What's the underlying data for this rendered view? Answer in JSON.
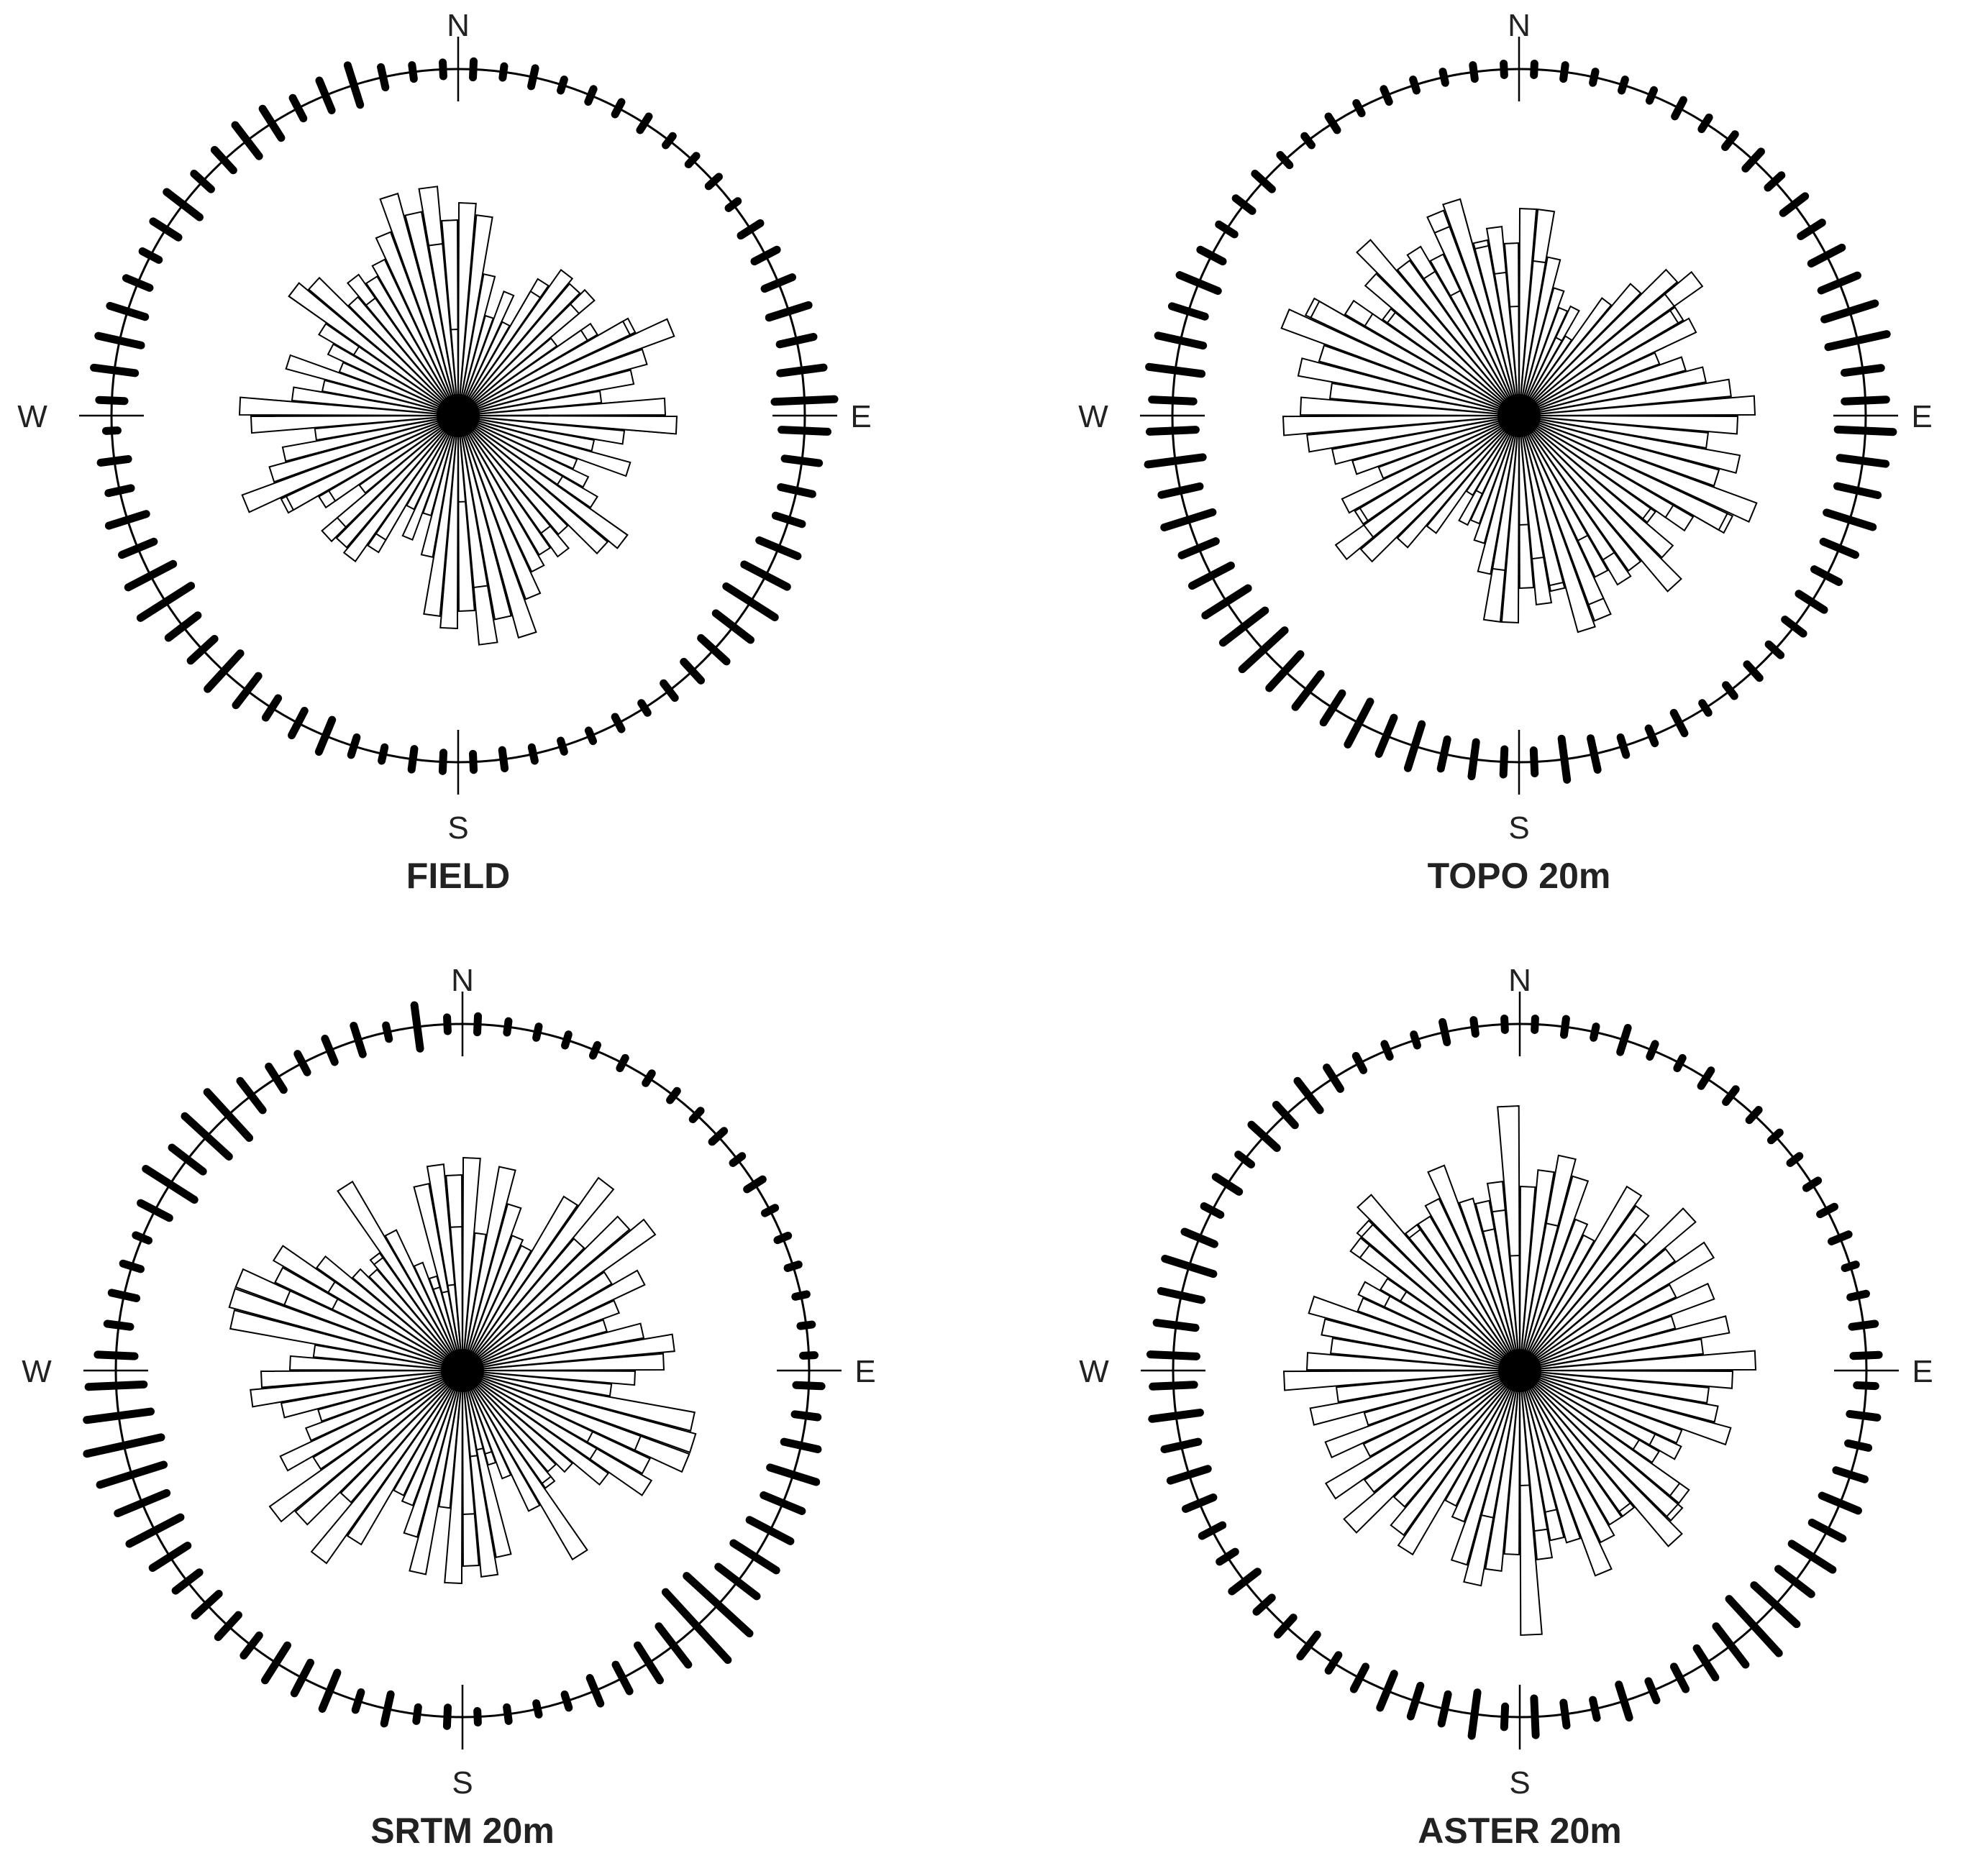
{
  "figure": {
    "direction_labels": {
      "N": "N",
      "E": "E",
      "S": "S",
      "W": "W"
    }
  },
  "chart_data": [
    {
      "type": "rose",
      "title": "FIELD",
      "bin_width_deg": 5,
      "petal_values": [
        0.5,
        0.12,
        0.18,
        0.34,
        0.22,
        0.3,
        0.55,
        0.38,
        0.48,
        0.62,
        0.4,
        0.56,
        0.68,
        0.46,
        0.5,
        0.36,
        0.44,
        0.58,
        0.72,
        0.5,
        0.35,
        0.44,
        0.3,
        0.36,
        0.56,
        0.72,
        0.6,
        0.5,
        0.6,
        0.5,
        0.54,
        0.56,
        0.66,
        0.7,
        0.8,
        0.68,
        0.74,
        0.7,
        0.5,
        0.36,
        0.46,
        0.36,
        0.5,
        0.62,
        0.6,
        0.55,
        0.42,
        0.52,
        0.66,
        0.8,
        0.68,
        0.62,
        0.5,
        0.72,
        0.76,
        0.58,
        0.48,
        0.62,
        0.44,
        0.5,
        0.42,
        0.72,
        0.68,
        0.54,
        0.5,
        0.56,
        0.6,
        0.68,
        0.8,
        0.72,
        0.6,
        0.3
      ],
      "rim_ticks": [
        0.14,
        0.1,
        0.16,
        0.1,
        0.12,
        0.12,
        0.14,
        0.1,
        0.1,
        0.12,
        0.1,
        0.2,
        0.22,
        0.26,
        0.36,
        0.3,
        0.38,
        0.52,
        0.4,
        0.3,
        0.28,
        0.24,
        0.36,
        0.42,
        0.5,
        0.38,
        0.3,
        0.22,
        0.16,
        0.1,
        0.12,
        0.1,
        0.1,
        0.12,
        0.16,
        0.14,
        0.16,
        0.18,
        0.12,
        0.16,
        0.3,
        0.24,
        0.2,
        0.32,
        0.42,
        0.28,
        0.32,
        0.52,
        0.44,
        0.3,
        0.34,
        0.2,
        0.24,
        0.1,
        0.22,
        0.36,
        0.38,
        0.32,
        0.22,
        0.16,
        0.26,
        0.36,
        0.2,
        0.24,
        0.34,
        0.3,
        0.2,
        0.28,
        0.36,
        0.18,
        0.12,
        0.12
      ]
    },
    {
      "type": "rose",
      "title": "TOPO 20m",
      "bin_width_deg": 5,
      "petal_values": [
        0.3,
        0.72,
        0.2,
        0.26,
        0.36,
        0.42,
        0.3,
        0.34,
        0.48,
        0.58,
        0.78,
        0.66,
        0.56,
        0.48,
        0.6,
        0.58,
        0.44,
        0.5,
        0.54,
        0.46,
        0.62,
        0.72,
        0.6,
        0.82,
        0.7,
        0.58,
        0.62,
        0.66,
        0.54,
        0.68,
        0.62,
        0.76,
        0.72,
        0.62,
        0.66,
        0.6,
        0.72,
        0.54,
        0.56,
        0.46,
        0.4,
        0.3,
        0.32,
        0.5,
        0.6,
        0.72,
        0.66,
        0.64,
        0.68,
        0.52,
        0.6,
        0.66,
        0.74,
        0.82,
        0.76,
        0.66,
        0.78,
        0.72,
        0.88,
        0.8,
        0.62,
        0.56,
        0.7,
        0.8,
        0.66,
        0.58,
        0.48,
        0.7,
        0.78,
        0.6,
        0.5,
        0.38
      ],
      "rim_ticks": [
        0.1,
        0.12,
        0.1,
        0.1,
        0.1,
        0.16,
        0.12,
        0.14,
        0.2,
        0.16,
        0.24,
        0.22,
        0.3,
        0.34,
        0.46,
        0.52,
        0.32,
        0.36,
        0.48,
        0.4,
        0.36,
        0.42,
        0.3,
        0.24,
        0.26,
        0.2,
        0.14,
        0.16,
        0.12,
        0.1,
        0.2,
        0.14,
        0.16,
        0.28,
        0.36,
        0.2,
        0.22,
        0.3,
        0.26,
        0.4,
        0.34,
        0.42,
        0.3,
        0.36,
        0.4,
        0.5,
        0.46,
        0.44,
        0.38,
        0.32,
        0.44,
        0.34,
        0.48,
        0.4,
        0.36,
        0.46,
        0.4,
        0.3,
        0.36,
        0.22,
        0.16,
        0.18,
        0.2,
        0.12,
        0.1,
        0.14,
        0.1,
        0.12,
        0.1,
        0.1,
        0.12,
        0.1
      ]
    },
    {
      "type": "rose",
      "title": "SRTM 20m",
      "bin_width_deg": 5,
      "petal_values": [
        0.3,
        0.14,
        0.5,
        0.36,
        0.22,
        0.28,
        0.46,
        0.62,
        0.38,
        0.3,
        0.32,
        0.36,
        0.28,
        0.24,
        0.3,
        0.3,
        0.66,
        0.3,
        0.32,
        0.26,
        0.46,
        0.82,
        0.84,
        0.72,
        0.76,
        0.44,
        0.36,
        0.32,
        0.5,
        0.46,
        0.44,
        0.32,
        0.34,
        0.66,
        0.72,
        0.68,
        0.74,
        0.48,
        0.72,
        0.6,
        0.5,
        0.48,
        0.7,
        0.82,
        0.6,
        0.76,
        0.82,
        0.6,
        0.7,
        0.58,
        0.52,
        0.64,
        0.74,
        0.7,
        0.6,
        0.52,
        0.82,
        0.84,
        0.66,
        0.5,
        0.54,
        0.62,
        0.5,
        0.46,
        0.48,
        0.76,
        0.54,
        0.4,
        0.3,
        0.28,
        0.3,
        0.5
      ],
      "rim_ticks": [
        0.14,
        0.1,
        0.1,
        0.1,
        0.1,
        0.1,
        0.1,
        0.1,
        0.1,
        0.14,
        0.1,
        0.16,
        0.1,
        0.1,
        0.1,
        0.1,
        0.1,
        0.1,
        0.22,
        0.2,
        0.3,
        0.42,
        0.36,
        0.4,
        0.44,
        0.42,
        0.74,
        0.8,
        0.42,
        0.36,
        0.26,
        0.24,
        0.12,
        0.1,
        0.12,
        0.1,
        0.16,
        0.12,
        0.26,
        0.16,
        0.34,
        0.3,
        0.36,
        0.22,
        0.26,
        0.28,
        0.26,
        0.36,
        0.5,
        0.46,
        0.58,
        0.66,
        0.56,
        0.48,
        0.32,
        0.2,
        0.22,
        0.16,
        0.12,
        0.28,
        0.5,
        0.34,
        0.52,
        0.54,
        0.32,
        0.24,
        0.18,
        0.22,
        0.26,
        0.12,
        0.38,
        0.12
      ]
    },
    {
      "type": "rose",
      "title": "ASTER 20m",
      "bin_width_deg": 5,
      "petal_values": [
        0.3,
        0.4,
        0.76,
        0.52,
        0.46,
        0.4,
        0.5,
        0.56,
        0.34,
        0.38,
        0.42,
        0.36,
        0.42,
        0.34,
        0.44,
        0.36,
        0.46,
        0.52,
        0.58,
        0.6,
        0.62,
        0.54,
        0.52,
        0.62,
        0.56,
        0.72,
        0.74,
        0.66,
        0.62,
        0.54,
        0.58,
        0.62,
        0.56,
        0.6,
        0.66,
        0.92,
        0.64,
        0.7,
        0.52,
        0.7,
        0.56,
        0.52,
        0.74,
        0.7,
        0.62,
        0.8,
        0.66,
        0.78,
        0.6,
        0.72,
        0.56,
        0.74,
        0.64,
        0.82,
        0.74,
        0.66,
        0.7,
        0.76,
        0.6,
        0.52,
        0.48,
        0.68,
        0.72,
        0.8,
        0.6,
        0.62,
        0.66,
        0.76,
        0.62,
        0.5,
        0.56,
        0.4
      ],
      "rim_ticks": [
        0.1,
        0.14,
        0.1,
        0.22,
        0.12,
        0.1,
        0.16,
        0.14,
        0.12,
        0.1,
        0.1,
        0.12,
        0.14,
        0.16,
        0.1,
        0.14,
        0.2,
        0.22,
        0.16,
        0.24,
        0.18,
        0.26,
        0.34,
        0.3,
        0.42,
        0.36,
        0.5,
        0.64,
        0.42,
        0.3,
        0.22,
        0.18,
        0.3,
        0.16,
        0.2,
        0.32,
        0.18,
        0.38,
        0.26,
        0.28,
        0.32,
        0.22,
        0.16,
        0.24,
        0.2,
        0.18,
        0.28,
        0.16,
        0.2,
        0.26,
        0.34,
        0.3,
        0.42,
        0.36,
        0.4,
        0.34,
        0.36,
        0.44,
        0.28,
        0.16,
        0.24,
        0.14,
        0.3,
        0.24,
        0.32,
        0.22,
        0.14,
        0.12,
        0.1,
        0.18,
        0.12,
        0.1
      ]
    }
  ]
}
